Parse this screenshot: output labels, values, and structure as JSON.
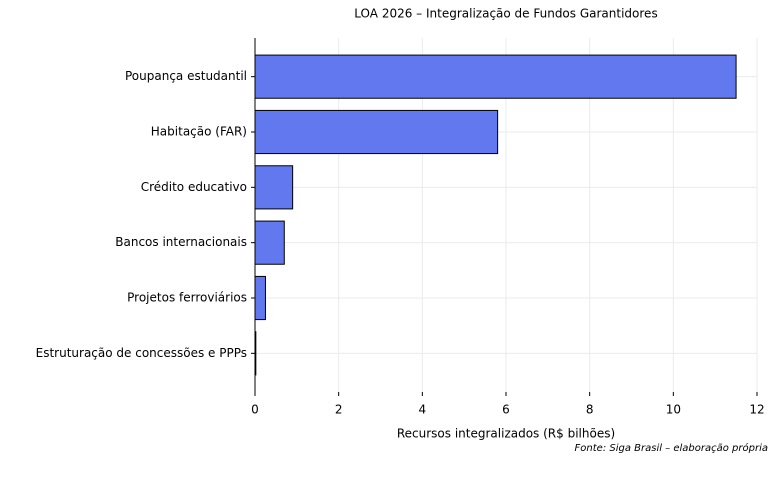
{
  "chart_data": {
    "type": "hbar",
    "title": "LOA 2026 – Integralização de Fundos Garantidores",
    "categories": [
      "Poupança estudantil",
      "Habitação (FAR)",
      "Crédito educativo",
      "Bancos internacionais",
      "Projetos ferroviários",
      "Estruturação de concessões e PPPs"
    ],
    "values": [
      11.5,
      5.8,
      0.9,
      0.7,
      0.25,
      0.02
    ],
    "color": "#6178ee",
    "xlabel": "Recursos integralizados (R$ bilhões)",
    "source": "Fonte: Siga Brasil – elaboração própria",
    "xlim": [
      0,
      12
    ],
    "xticks": [
      0,
      2,
      4,
      6,
      8,
      10,
      12
    ],
    "grid": true
  }
}
